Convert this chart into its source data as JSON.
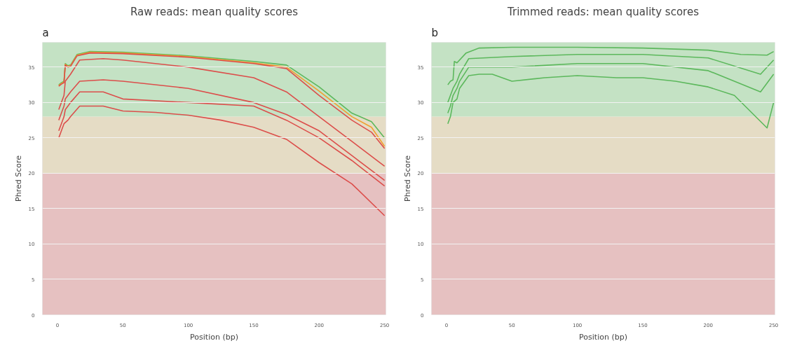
{
  "chart_data": [
    {
      "type": "line",
      "title": "Raw reads: mean quality scores",
      "xlabel": "Position (bp)",
      "ylabel": "Phred Score",
      "annotations": [
        "a"
      ],
      "xlim": [
        -11.5,
        251
      ],
      "ylim": [
        0,
        38.5
      ],
      "xticks": [
        0,
        50,
        100,
        150,
        200,
        250
      ],
      "yticks": [
        0,
        5,
        10,
        15,
        20,
        25,
        30,
        35
      ],
      "grid": "y",
      "line_style": "solid",
      "bands": [
        {
          "axis": "y",
          "from": 0,
          "to": 20,
          "color": "#e6c1c1"
        },
        {
          "axis": "y",
          "from": 20,
          "to": 28,
          "color": "#e5dcc5"
        },
        {
          "axis": "y",
          "from": 28,
          "to": 38.5,
          "color": "#c4e2c4"
        }
      ],
      "series": [
        {
          "color": "#5cb85c",
          "x": [
            1,
            3,
            5,
            6,
            8,
            10,
            15,
            25,
            50,
            100,
            150,
            175,
            200,
            225,
            240,
            250
          ],
          "values": [
            32.5,
            32.8,
            33,
            35.5,
            35.2,
            35.3,
            36.8,
            37.2,
            37.1,
            36.6,
            35.8,
            35.3,
            32.2,
            28.5,
            27.3,
            25
          ]
        },
        {
          "color": "#f0a030",
          "x": [
            1,
            3,
            5,
            6,
            8,
            10,
            15,
            25,
            50,
            100,
            150,
            175,
            200,
            225,
            240,
            250
          ],
          "values": [
            32.4,
            32.7,
            32.9,
            35.4,
            35.1,
            35.2,
            36.7,
            37.1,
            37,
            36.5,
            35.6,
            35,
            31.6,
            28,
            26.5,
            23.8
          ]
        },
        {
          "color": "#dc4e4b",
          "x": [
            1,
            3,
            5,
            6,
            8,
            10,
            15,
            25,
            50,
            100,
            150,
            175,
            200,
            225,
            240,
            250
          ],
          "values": [
            32.3,
            32.6,
            32.8,
            35.3,
            35,
            35.1,
            36.6,
            37,
            36.9,
            36.4,
            35.5,
            34.8,
            31,
            27.5,
            25.8,
            23.5
          ]
        },
        {
          "color": "#dc4e4b",
          "x": [
            1,
            3,
            5,
            6,
            8,
            10,
            17,
            35,
            50,
            100,
            150,
            175,
            200,
            225,
            250
          ],
          "values": [
            29,
            30,
            31,
            33,
            33.5,
            34,
            36,
            36.2,
            36,
            35,
            33.5,
            31.5,
            28,
            24.5,
            21
          ]
        },
        {
          "color": "#dc4e4b",
          "x": [
            1,
            3,
            5,
            6,
            8,
            10,
            17,
            35,
            50,
            100,
            150,
            175,
            200,
            225,
            250
          ],
          "values": [
            27.5,
            28.5,
            29.5,
            30.5,
            31,
            31.5,
            33,
            33.2,
            33,
            32,
            30,
            28.3,
            26,
            22.5,
            19
          ]
        },
        {
          "color": "#dc4e4b",
          "x": [
            1,
            3,
            5,
            6,
            8,
            10,
            17,
            35,
            50,
            100,
            150,
            175,
            200,
            225,
            250
          ],
          "values": [
            26,
            27,
            28,
            29,
            29.5,
            30,
            31.5,
            31.5,
            30.5,
            30,
            29.5,
            27.5,
            25,
            21.8,
            18.2
          ]
        },
        {
          "color": "#dc4e4b",
          "x": [
            1,
            3,
            5,
            8,
            10,
            17,
            35,
            50,
            75,
            100,
            125,
            150,
            175,
            200,
            225,
            250
          ],
          "values": [
            25,
            26,
            27,
            27.5,
            28,
            29.5,
            29.5,
            28.8,
            28.6,
            28.2,
            27.5,
            26.5,
            24.8,
            21.5,
            18.5,
            14
          ]
        }
      ]
    },
    {
      "type": "line",
      "title": "Trimmed reads: mean quality scores",
      "xlabel": "Position (bp)",
      "ylabel": "Phred Score",
      "annotations": [
        "b"
      ],
      "xlim": [
        -11.5,
        251
      ],
      "ylim": [
        0,
        38.5
      ],
      "xticks": [
        0,
        50,
        100,
        150,
        200,
        250
      ],
      "yticks": [
        0,
        5,
        10,
        15,
        20,
        25,
        30,
        35
      ],
      "grid": "y",
      "line_style": "solid",
      "bands": [
        {
          "axis": "y",
          "from": 0,
          "to": 20,
          "color": "#e6c1c1"
        },
        {
          "axis": "y",
          "from": 20,
          "to": 28,
          "color": "#e5dcc5"
        },
        {
          "axis": "y",
          "from": 28,
          "to": 38.5,
          "color": "#c4e2c4"
        }
      ],
      "series": [
        {
          "color": "#5cb85c",
          "x": [
            1,
            3,
            5,
            6,
            8,
            15,
            25,
            50,
            100,
            150,
            200,
            225,
            245,
            250
          ],
          "values": [
            32.5,
            33,
            33.2,
            35.8,
            35.6,
            37,
            37.7,
            37.8,
            37.8,
            37.7,
            37.4,
            36.8,
            36.7,
            37.2
          ]
        },
        {
          "color": "#5cb85c",
          "x": [
            1,
            3,
            5,
            8,
            10,
            17,
            50,
            100,
            150,
            200,
            240,
            250
          ],
          "values": [
            30,
            31,
            32,
            33,
            34,
            36.2,
            36.5,
            36.8,
            36.8,
            36.3,
            34,
            36
          ]
        },
        {
          "color": "#5cb85c",
          "x": [
            1,
            3,
            5,
            8,
            10,
            17,
            50,
            100,
            150,
            200,
            240,
            250
          ],
          "values": [
            28.5,
            29.5,
            31,
            32,
            33,
            35,
            35,
            35.5,
            35.5,
            34.5,
            31.5,
            34
          ]
        },
        {
          "color": "#5cb85c",
          "x": [
            1,
            3,
            5,
            8,
            10,
            17,
            25,
            35,
            50,
            75,
            100,
            130,
            150,
            175,
            200,
            220,
            245,
            250
          ],
          "values": [
            27,
            28,
            30,
            30.5,
            32,
            33.8,
            34,
            34,
            33,
            33.5,
            33.8,
            33.5,
            33.5,
            33,
            32.2,
            31,
            26.4,
            30
          ]
        }
      ]
    }
  ]
}
